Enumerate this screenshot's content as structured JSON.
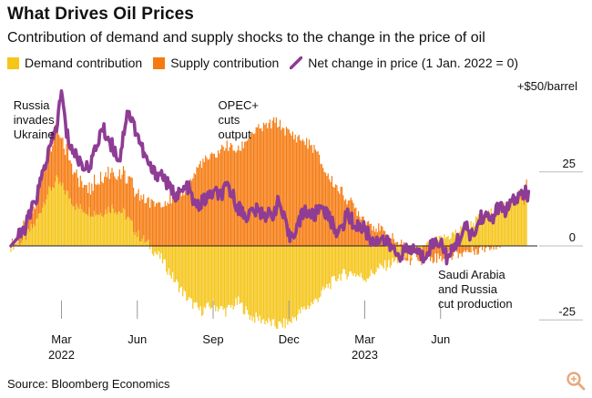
{
  "header": {
    "title": "What Drives Oil Prices",
    "subtitle": "Contribution of demand and supply shocks to the change in the price of oil"
  },
  "legend": [
    {
      "label": "Demand contribution",
      "color": "#f5c518",
      "shape": "square"
    },
    {
      "label": "Supply contribution",
      "color": "#f57a0f",
      "shape": "square"
    },
    {
      "label": "Net change in price (1 Jan. 2022 = 0)",
      "color": "#8e3c95",
      "shape": "line"
    }
  ],
  "source": "Source: Bloomberg Economics",
  "logo_icon": "magnifier-logo-icon",
  "chart_data": {
    "type": "area",
    "title": "What Drives Oil Prices",
    "unit_label": "+$50/barrel",
    "ylim": [
      -30,
      52
    ],
    "y_ticks": [
      {
        "value": 25,
        "label": "25"
      },
      {
        "value": 0,
        "label": "0"
      },
      {
        "value": -25,
        "label": "-25"
      }
    ],
    "x_ticks": [
      {
        "month": 2,
        "label": "Mar",
        "sublabel": "2022"
      },
      {
        "month": 5,
        "label": "Jun",
        "sublabel": ""
      },
      {
        "month": 8,
        "label": "Sep",
        "sublabel": ""
      },
      {
        "month": 11,
        "label": "Dec",
        "sublabel": ""
      },
      {
        "month": 14,
        "label": "Mar",
        "sublabel": "2023"
      },
      {
        "month": 17,
        "label": "Jun",
        "sublabel": ""
      }
    ],
    "xlim": [
      0,
      20.6
    ],
    "x_unit": "months since 1 Jan 2022",
    "series": [
      {
        "name": "Demand contribution",
        "color": "#f5c518",
        "x": [
          0,
          0.5,
          1.0,
          1.4,
          1.8,
          2.2,
          2.6,
          3.0,
          3.5,
          4.0,
          4.5,
          5.0,
          5.5,
          6.0,
          6.5,
          7.0,
          7.5,
          8.0,
          8.5,
          9.0,
          9.5,
          10.0,
          10.5,
          11.0,
          11.5,
          12.0,
          12.5,
          13.0,
          13.5,
          14.0,
          14.5,
          15.0,
          15.5,
          16.0,
          16.5,
          17.0,
          17.5,
          18.0,
          18.5,
          19.0,
          19.5,
          20.0,
          20.4
        ],
        "values": [
          0,
          2,
          8,
          17,
          22,
          18,
          13,
          12,
          11,
          13,
          11,
          4,
          0,
          -5,
          -12,
          -18,
          -22,
          -20,
          -22,
          -19,
          -24,
          -25,
          -27,
          -26,
          -22,
          -19,
          -14,
          -10,
          -9,
          -11,
          -8,
          -6,
          -4,
          -2,
          0,
          2,
          4,
          6,
          9,
          11,
          13,
          15,
          16
        ]
      },
      {
        "name": "Supply contribution",
        "color": "#f57a0f",
        "x": [
          0,
          0.5,
          1.0,
          1.4,
          1.8,
          2.2,
          2.6,
          3.0,
          3.5,
          4.0,
          4.5,
          5.0,
          5.5,
          6.0,
          6.5,
          7.0,
          7.5,
          8.0,
          8.5,
          9.0,
          9.5,
          10.0,
          10.5,
          11.0,
          11.5,
          12.0,
          12.5,
          13.0,
          13.5,
          14.0,
          14.5,
          15.0,
          15.5,
          16.0,
          16.5,
          17.0,
          17.5,
          18.0,
          18.5,
          19.0,
          19.5,
          20.0,
          20.4
        ],
        "values": [
          0,
          3,
          8,
          12,
          18,
          15,
          10,
          8,
          12,
          13,
          12,
          14,
          14,
          15,
          16,
          20,
          28,
          30,
          34,
          32,
          38,
          40,
          42,
          38,
          36,
          33,
          24,
          19,
          14,
          9,
          6,
          3,
          0,
          -2,
          -4,
          -4,
          -3,
          -2,
          -1,
          0,
          1,
          2,
          3
        ]
      },
      {
        "name": "Net change in price (1 Jan. 2022 = 0)",
        "color": "#8e3c95",
        "x": [
          0,
          0.5,
          1.0,
          1.4,
          1.8,
          2.0,
          2.2,
          2.4,
          2.6,
          3.0,
          3.3,
          3.6,
          4.0,
          4.3,
          4.6,
          5.0,
          5.3,
          5.6,
          6.0,
          6.3,
          6.6,
          7.0,
          7.3,
          7.6,
          8.0,
          8.3,
          8.6,
          9.0,
          9.3,
          9.6,
          10.0,
          10.3,
          10.6,
          11.0,
          11.3,
          11.6,
          12.0,
          12.3,
          12.6,
          13.0,
          13.3,
          13.6,
          14.0,
          14.3,
          14.6,
          15.0,
          15.3,
          15.6,
          16.0,
          16.3,
          16.6,
          17.0,
          17.3,
          17.6,
          18.0,
          18.3,
          18.6,
          19.0,
          19.3,
          19.6,
          20.0,
          20.3,
          20.5
        ],
        "values": [
          0,
          5,
          16,
          29,
          40,
          52,
          38,
          33,
          30,
          26,
          31,
          40,
          34,
          29,
          46,
          38,
          30,
          25,
          24,
          19,
          17,
          20,
          13,
          15,
          18,
          17,
          20,
          13,
          10,
          12,
          11,
          10,
          15,
          3,
          6,
          12,
          10,
          14,
          9,
          4,
          11,
          7,
          6,
          1,
          3,
          0,
          -3,
          -2,
          -1,
          -4,
          0,
          2,
          -5,
          1,
          6,
          3,
          10,
          9,
          13,
          12,
          16,
          18,
          17
        ]
      }
    ],
    "annotations": [
      {
        "text": [
          "Russia",
          "invades",
          "Ukraine"
        ],
        "x": 0.1,
        "anchor": "start"
      },
      {
        "text": [
          "OPEC+",
          "cuts",
          "output"
        ],
        "x": 8.2,
        "anchor": "start"
      },
      {
        "text": [
          "Saudi Arabia",
          "and Russia",
          "cut production"
        ],
        "x": 16.9,
        "anchor": "start"
      }
    ]
  }
}
